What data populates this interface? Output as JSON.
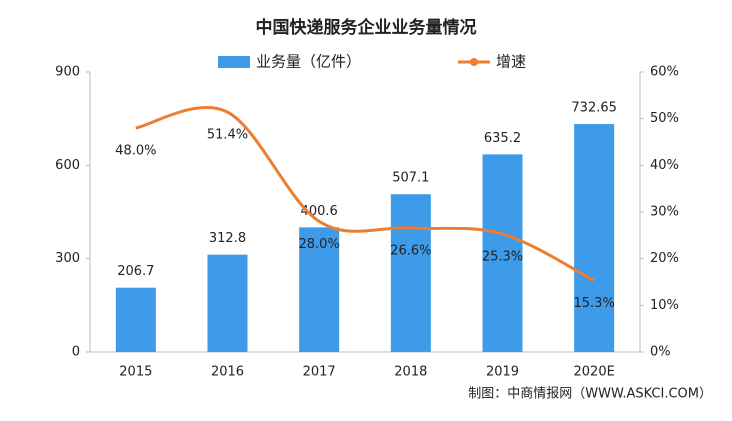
{
  "chart_data": {
    "type": "bar",
    "title": "中国快递服务企业业务量情况",
    "categories": [
      "2015",
      "2016",
      "2017",
      "2018",
      "2019",
      "2020E"
    ],
    "series": [
      {
        "name": "业务量（亿件）",
        "type": "bar",
        "color": "#3d9be9",
        "values": [
          206.7,
          312.8,
          400.6,
          507.1,
          635.2,
          732.65
        ]
      },
      {
        "name": "增速",
        "type": "line",
        "axis": "y2",
        "color": "#ed7d31",
        "values": [
          48.0,
          51.4,
          28.0,
          26.6,
          25.3,
          15.3
        ],
        "value_labels": [
          "48.0%",
          "51.4%",
          "28.0%",
          "26.6%",
          "25.3%",
          "15.3%"
        ]
      }
    ],
    "ylim": [
      0,
      900
    ],
    "yticks": [
      0,
      300,
      600,
      900
    ],
    "y2lim": [
      0,
      60
    ],
    "y2ticks": [
      {
        "value": 0,
        "label": "0%"
      },
      {
        "value": 10,
        "label": "10%"
      },
      {
        "value": 20,
        "label": "20%"
      },
      {
        "value": 30,
        "label": "30%"
      },
      {
        "value": 40,
        "label": "40%"
      },
      {
        "value": 50,
        "label": "50%"
      },
      {
        "value": 60,
        "label": "60%"
      }
    ],
    "legend": "top",
    "source": "制图：中商情报网（WWW.ASKCI.COM）"
  }
}
